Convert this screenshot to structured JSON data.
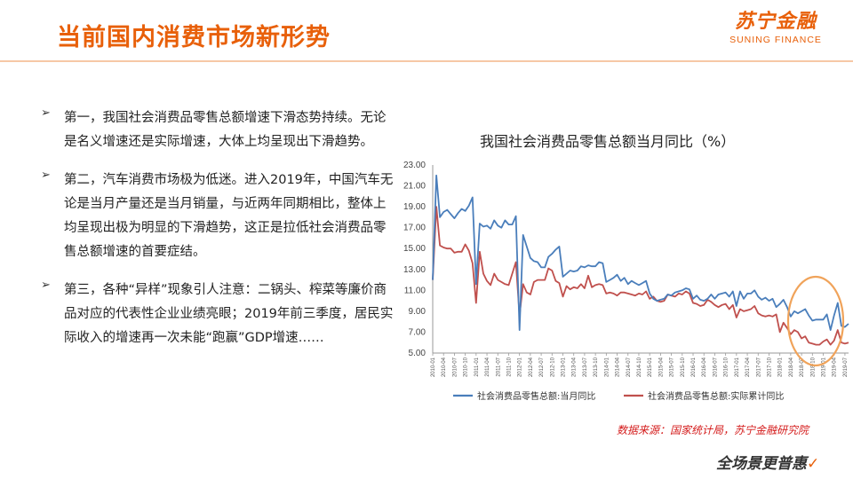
{
  "header": {
    "title": "当前国内消费市场新形势"
  },
  "logo": {
    "cn": "苏宁金融",
    "en": "SUNING FINANCE"
  },
  "bullets": [
    "第一，我国社会消费品零售总额增速下滑态势持续。无论是名义增速还是实际增速，大体上均呈现出下滑趋势。",
    "第二，汽车消费市场极为低迷。进入2019年，中国汽车无论是当月产量还是当月销量，与近两年同期相比，整体上均呈现出极为明显的下滑趋势，这正是拉低社会消费品零售总额增速的首要症结。",
    "第三，各种“异样”现象引人注意：二锅头、榨菜等廉价商品对应的代表性企业业绩亮眼；2019年前三季度，居民实际收入的增速再一次未能“跑赢”GDP增速……"
  ],
  "chart_data": {
    "type": "line",
    "title": "我国社会消费品零售总额当月同比（%）",
    "ylim": [
      5,
      23
    ],
    "yticks": [
      "23.00",
      "21.00",
      "19.00",
      "17.00",
      "15.00",
      "13.00",
      "11.00",
      "9.00",
      "7.00",
      "5.00"
    ],
    "xticks": [
      "2010-01",
      "2010-04",
      "2010-07",
      "2010-10",
      "2011-01",
      "2011-04",
      "2011-07",
      "2011-10",
      "2012-01",
      "2012-04",
      "2012-07",
      "2012-10",
      "2013-01",
      "2013-04",
      "2013-07",
      "2013-10",
      "2014-01",
      "2014-04",
      "2014-07",
      "2014-10",
      "2015-01",
      "2015-04",
      "2015-07",
      "2015-10",
      "2016-01",
      "2016-04",
      "2016-07",
      "2016-10",
      "2017-01",
      "2017-04",
      "2017-07",
      "2017-10",
      "2018-01",
      "2018-04",
      "2018-07",
      "2018-10",
      "2019-01",
      "2019-04",
      "2019-07"
    ],
    "series": [
      {
        "name": "社会消费品零售总额:当月同比",
        "color": "#4a7ebb",
        "values": [
          12.0,
          22.0,
          18.0,
          18.5,
          18.7,
          18.3,
          17.9,
          18.4,
          18.8,
          18.6,
          19.1,
          19.9,
          11.6,
          17.4,
          17.1,
          17.2,
          16.9,
          17.7,
          17.2,
          17.0,
          17.7,
          17.3,
          17.3,
          18.1,
          7.2,
          16.3,
          15.2,
          14.1,
          13.8,
          13.7,
          13.2,
          13.2,
          14.2,
          14.5,
          14.9,
          15.2,
          12.3,
          12.6,
          12.9,
          12.8,
          12.9,
          13.3,
          13.2,
          13.4,
          13.3,
          13.3,
          13.7,
          13.6,
          11.8,
          12.0,
          12.2,
          12.5,
          11.9,
          12.2,
          11.6,
          11.9,
          11.7,
          11.5,
          11.7,
          11.9,
          10.7,
          10.2,
          10.0,
          10.1,
          10.2,
          10.6,
          10.5,
          10.8,
          10.9,
          11.0,
          11.2,
          11.1,
          10.2,
          10.5,
          10.1,
          10.0,
          10.2,
          10.6,
          10.2,
          10.6,
          10.7,
          10.8,
          10.4,
          10.9,
          9.5,
          10.9,
          10.2,
          10.7,
          10.7,
          11.0,
          10.4,
          10.1,
          10.3,
          10.0,
          10.2,
          9.4,
          9.7,
          10.1,
          9.4,
          8.5,
          9.0,
          8.8,
          9.0,
          9.2,
          8.6,
          8.1,
          8.2,
          8.2,
          8.2,
          8.7,
          7.2,
          8.6,
          9.8,
          7.6,
          7.5,
          7.8
        ]
      },
      {
        "name": "社会消费品零售总额:实际累计同比",
        "color": "#c0504d",
        "values": [
          12.0,
          19.0,
          15.3,
          15.1,
          15.0,
          15.0,
          14.6,
          14.7,
          14.7,
          15.4,
          14.8,
          13.6,
          9.8,
          14.7,
          12.6,
          11.9,
          11.5,
          12.6,
          12.0,
          11.8,
          11.6,
          11.5,
          12.6,
          13.7,
          8.6,
          11.6,
          10.8,
          10.6,
          11.8,
          12.0,
          12.0,
          12.0,
          13.1,
          12.9,
          11.9,
          11.7,
          10.4,
          11.4,
          11.1,
          11.3,
          11.2,
          11.6,
          11.2,
          12.4,
          11.3,
          11.5,
          11.6,
          11.5,
          10.7,
          10.8,
          10.7,
          10.5,
          10.8,
          10.8,
          10.7,
          10.6,
          10.5,
          10.7,
          10.6,
          10.9,
          10.2,
          10.4,
          10.0,
          9.9,
          10.0,
          10.6,
          10.5,
          10.4,
          10.7,
          10.6,
          10.9,
          10.7,
          9.8,
          9.7,
          9.5,
          9.6,
          10.1,
          9.9,
          9.6,
          9.4,
          9.6,
          9.7,
          9.2,
          9.6,
          8.4,
          9.2,
          9.0,
          9.1,
          9.2,
          9.5,
          8.8,
          8.6,
          8.5,
          8.6,
          8.5,
          8.7,
          7.0,
          7.9,
          7.4,
          6.8,
          7.2,
          7.0,
          6.4,
          6.6,
          6.0,
          5.9,
          5.8,
          5.8,
          6.1,
          6.3,
          5.8,
          6.2,
          7.2,
          6.0,
          5.9,
          6.0
        ]
      }
    ]
  },
  "source": "数据来源：国家统计局，苏宁金融研究院",
  "slogan": "全场景更普惠"
}
